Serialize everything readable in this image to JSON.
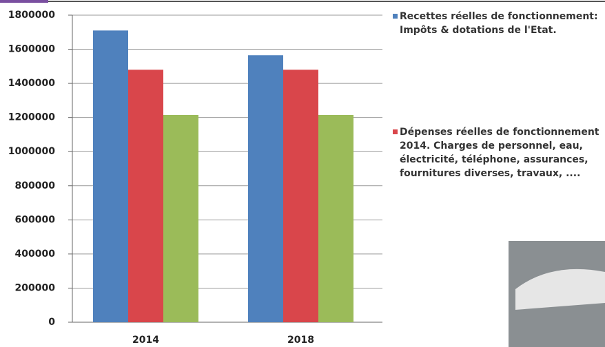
{
  "chart_data": {
    "type": "bar",
    "categories": [
      "2014",
      "2018"
    ],
    "series": [
      {
        "name": "Recettes réelles de fonctionnement: Impôts & dotations de l'Etat.",
        "color": "#4f81bd",
        "values": [
          1710000,
          1565000
        ]
      },
      {
        "name": "Dépenses réelles de fonctionnement 2014. Charges de personnel, eau, électricité, téléphone, assurances, fournitures diverses, travaux, ....",
        "color": "#d9464b",
        "values": [
          1480000,
          1480000
        ]
      },
      {
        "color": "#9bbb59",
        "values": [
          1215000,
          1215000
        ]
      }
    ],
    "ylim": [
      0,
      1800000
    ],
    "yticks": [
      0,
      200000,
      400000,
      600000,
      800000,
      1000000,
      1200000,
      1400000,
      1600000,
      1800000
    ],
    "grid": true
  }
}
